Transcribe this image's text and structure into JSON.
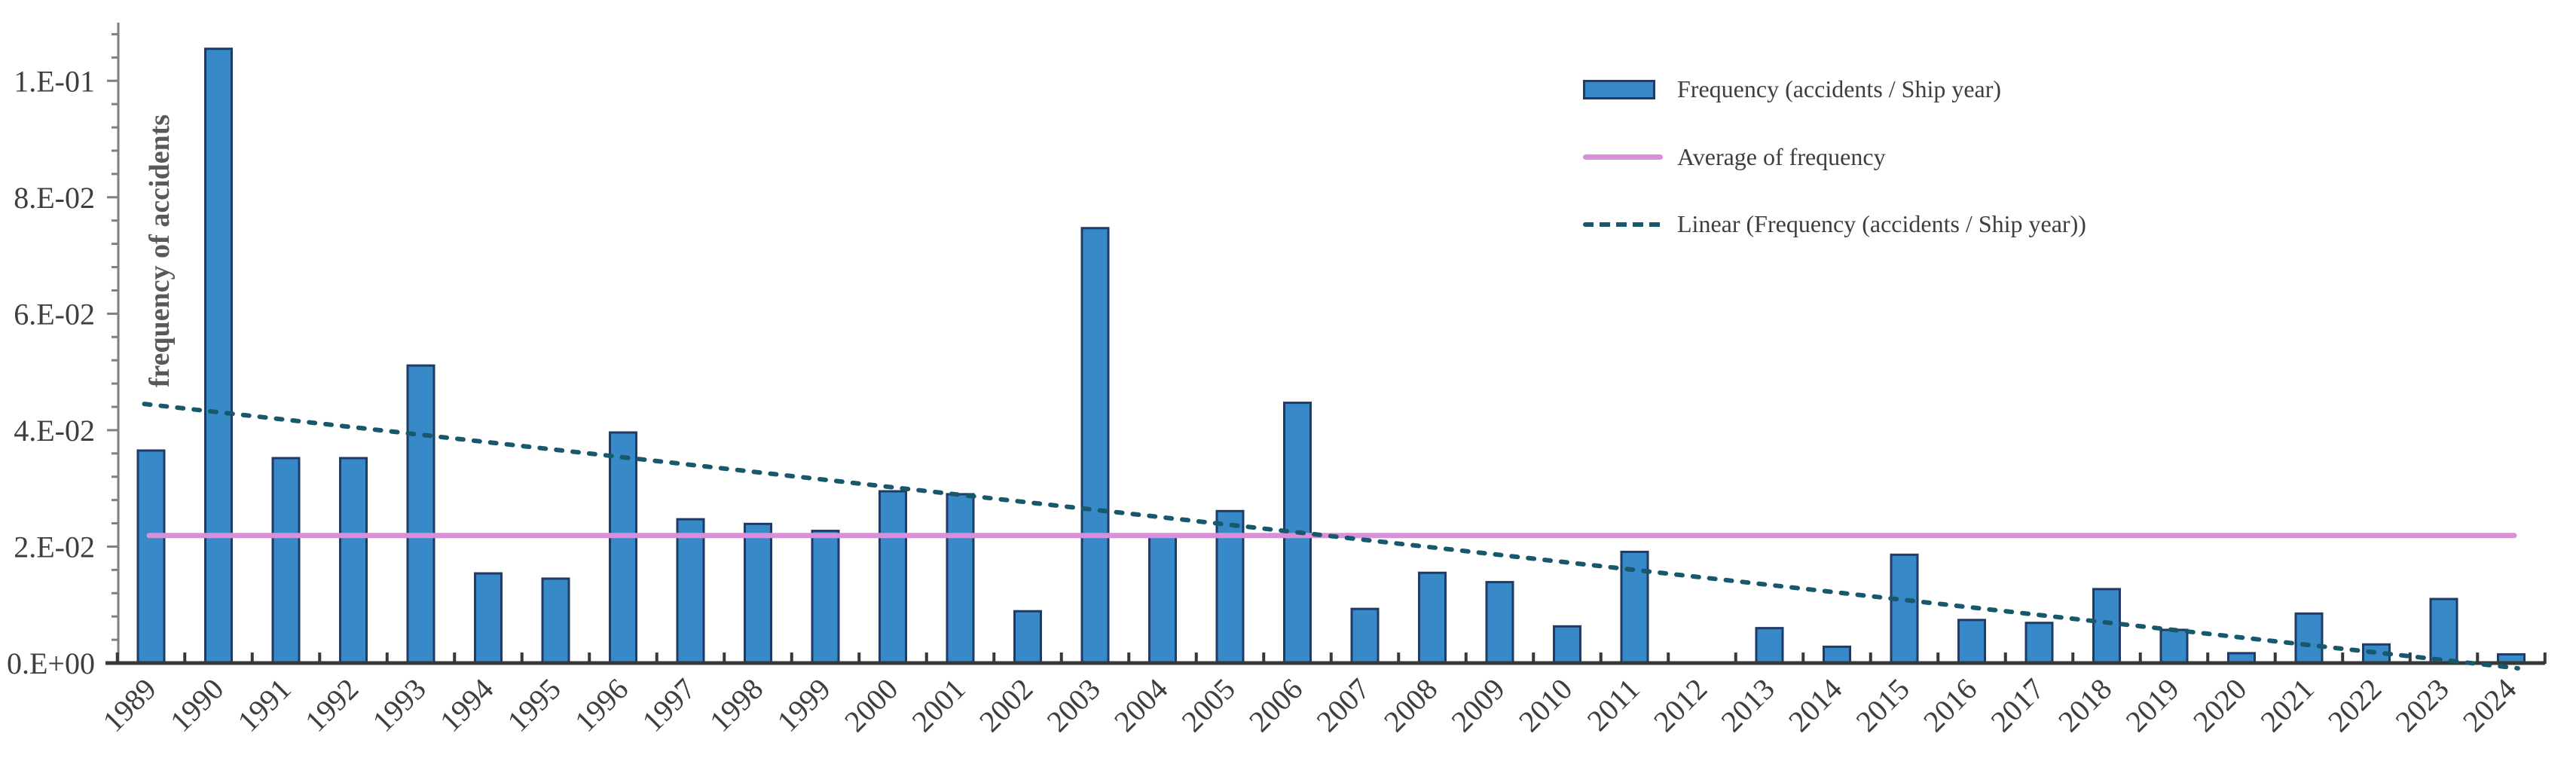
{
  "chart_data": {
    "type": "bar",
    "title": "",
    "xlabel": "",
    "ylabel": "frequency of accidents",
    "categories": [
      1989,
      1990,
      1991,
      1992,
      1993,
      1994,
      1995,
      1996,
      1997,
      1998,
      1999,
      2000,
      2001,
      2002,
      2003,
      2004,
      2005,
      2006,
      2007,
      2008,
      2009,
      2010,
      2011,
      2012,
      2013,
      2014,
      2015,
      2016,
      2017,
      2018,
      2019,
      2020,
      2021,
      2022,
      2023,
      2024
    ],
    "series": [
      {
        "name": "Frequency (accidents / Ship year)",
        "values": [
          0.0365,
          0.1055,
          0.0352,
          0.0352,
          0.0511,
          0.0154,
          0.0145,
          0.0396,
          0.0247,
          0.0239,
          0.0227,
          0.0295,
          0.029,
          0.0089,
          0.0747,
          0.0217,
          0.0261,
          0.0447,
          0.0093,
          0.0155,
          0.0139,
          0.0063,
          0.0191,
          0.0,
          0.006,
          0.0028,
          0.0186,
          0.0074,
          0.0069,
          0.0127,
          0.0057,
          0.0017,
          0.0085,
          0.0032,
          0.011,
          0.0015
        ]
      }
    ],
    "average_line": {
      "name": "Average of frequency",
      "value": 0.0219
    },
    "trend_line": {
      "name": "Linear (Frequency (accidents / Ship year))",
      "start_year": 1988.9,
      "start_value": 0.0445,
      "end_year": 2024.1,
      "end_value": -0.0009
    },
    "y_ticks": [
      {
        "label": "0.E+00",
        "value": 0.0
      },
      {
        "label": "2.E-02",
        "value": 0.02
      },
      {
        "label": "4.E-02",
        "value": 0.04
      },
      {
        "label": "6.E-02",
        "value": 0.06
      },
      {
        "label": "8.E-02",
        "value": 0.08
      },
      {
        "label": "1.E-01",
        "value": 0.1
      }
    ],
    "y_minor_tick_step": 0.004,
    "ylim": [
      0,
      0.108
    ],
    "grid": false,
    "legend_position": "top-right-inside"
  },
  "colors": {
    "bar_fill": "#3789C8",
    "bar_border": "#1F3B66",
    "average_line": "#DB8EDA",
    "trend_line": "#18586C",
    "axis_dark": "#383838",
    "axis_gray": "#7F7F7F",
    "tick_text": "#3E3E3E",
    "axis_title_text": "#595959",
    "legend_text": "#3E3E3E",
    "background": "#FFFFFF"
  }
}
